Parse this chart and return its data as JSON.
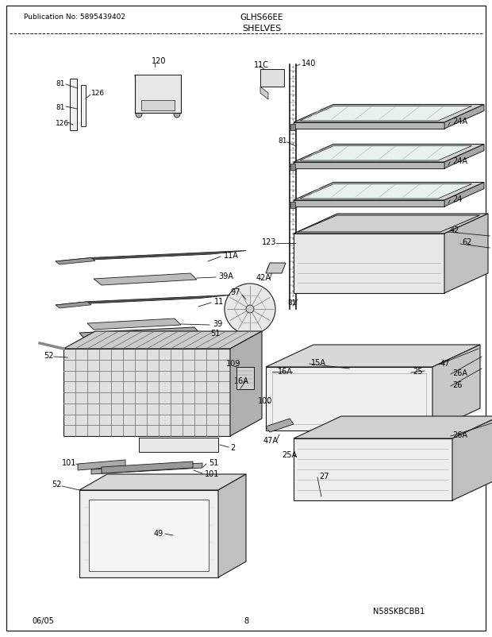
{
  "title": "SHELVES",
  "model": "GLHS66EE",
  "publication": "Publication No: 5895439402",
  "page": "8",
  "date": "06/05",
  "copyright": "N58SKBCBB1",
  "bg": "#ffffff",
  "lc": "#1a1a1a",
  "gray1": "#cccccc",
  "gray2": "#aaaaaa",
  "gray3": "#e8e8e8",
  "gray4": "#888888",
  "gray5": "#555555",
  "gray6": "#dddddd"
}
